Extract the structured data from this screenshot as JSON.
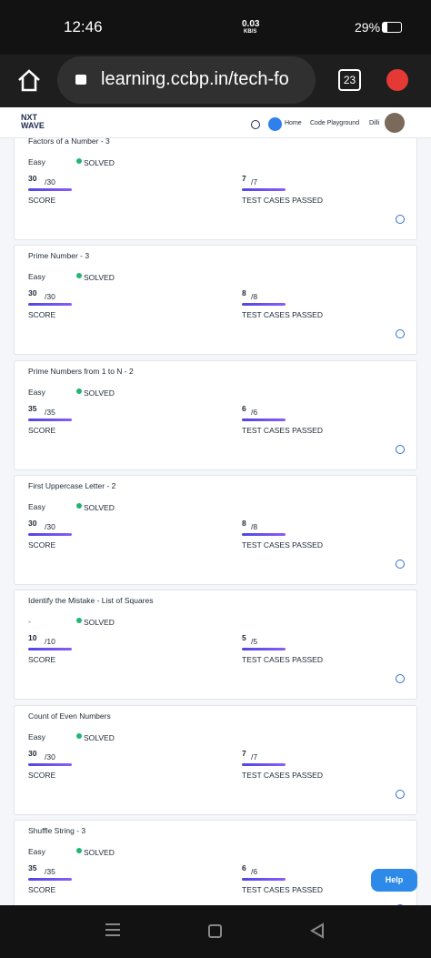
{
  "status_bar": {
    "time": "12:46",
    "network_speed": "0.03",
    "network_unit": "KB/S",
    "battery": "29%"
  },
  "browser": {
    "url": "learning.ccbp.in/tech-fo",
    "tab_count": "23"
  },
  "site_header": {
    "logo_line1": "NXT",
    "logo_line2": "WAVE",
    "nav": [
      "Home",
      "Code Playground"
    ],
    "user": "Dilli"
  },
  "problems": [
    {
      "title": "Factors of a Number - 3",
      "difficulty": "Easy",
      "status": "SOLVED",
      "score": 30,
      "max_score": "/30",
      "score_label": "SCORE",
      "test_cases_passed": 7,
      "total_test_cases": "/7",
      "test_cases_label": "TEST CASES PASSED"
    },
    {
      "title": "Prime Number - 3",
      "difficulty": "Easy",
      "status": "SOLVED",
      "score": 30,
      "max_score": "/30",
      "score_label": "SCORE",
      "test_cases_passed": 8,
      "total_test_cases": "/8",
      "test_cases_label": "TEST CASES PASSED"
    },
    {
      "title": "Prime Numbers from 1 to N - 2",
      "difficulty": "Easy",
      "status": "SOLVED",
      "score": 35,
      "max_score": "/35",
      "score_label": "SCORE",
      "test_cases_passed": 6,
      "total_test_cases": "/6",
      "test_cases_label": "TEST CASES PASSED"
    },
    {
      "title": "First Uppercase Letter - 2",
      "difficulty": "Easy",
      "status": "SOLVED",
      "score": 30,
      "max_score": "/30",
      "score_label": "SCORE",
      "test_cases_passed": 8,
      "total_test_cases": "/8",
      "test_cases_label": "TEST CASES PASSED"
    },
    {
      "title": "Identify the Mistake - List of Squares",
      "difficulty": "-",
      "status": "SOLVED",
      "score": 10,
      "max_score": "/10",
      "score_label": "SCORE",
      "test_cases_passed": 5,
      "total_test_cases": "/5",
      "test_cases_label": "TEST CASES PASSED"
    },
    {
      "title": "Count of Even Numbers",
      "difficulty": "Easy",
      "status": "SOLVED",
      "score": 30,
      "max_score": "/30",
      "score_label": "SCORE",
      "test_cases_passed": 7,
      "total_test_cases": "/7",
      "test_cases_label": "TEST CASES PASSED"
    },
    {
      "title": "Shuffle String - 3",
      "difficulty": "Easy",
      "status": "SOLVED",
      "score": 35,
      "max_score": "/35",
      "score_label": "SCORE",
      "test_cases_passed": 6,
      "total_test_cases": "/6",
      "test_cases_label": "TEST CASES PASSED"
    }
  ],
  "help_button": "Help"
}
